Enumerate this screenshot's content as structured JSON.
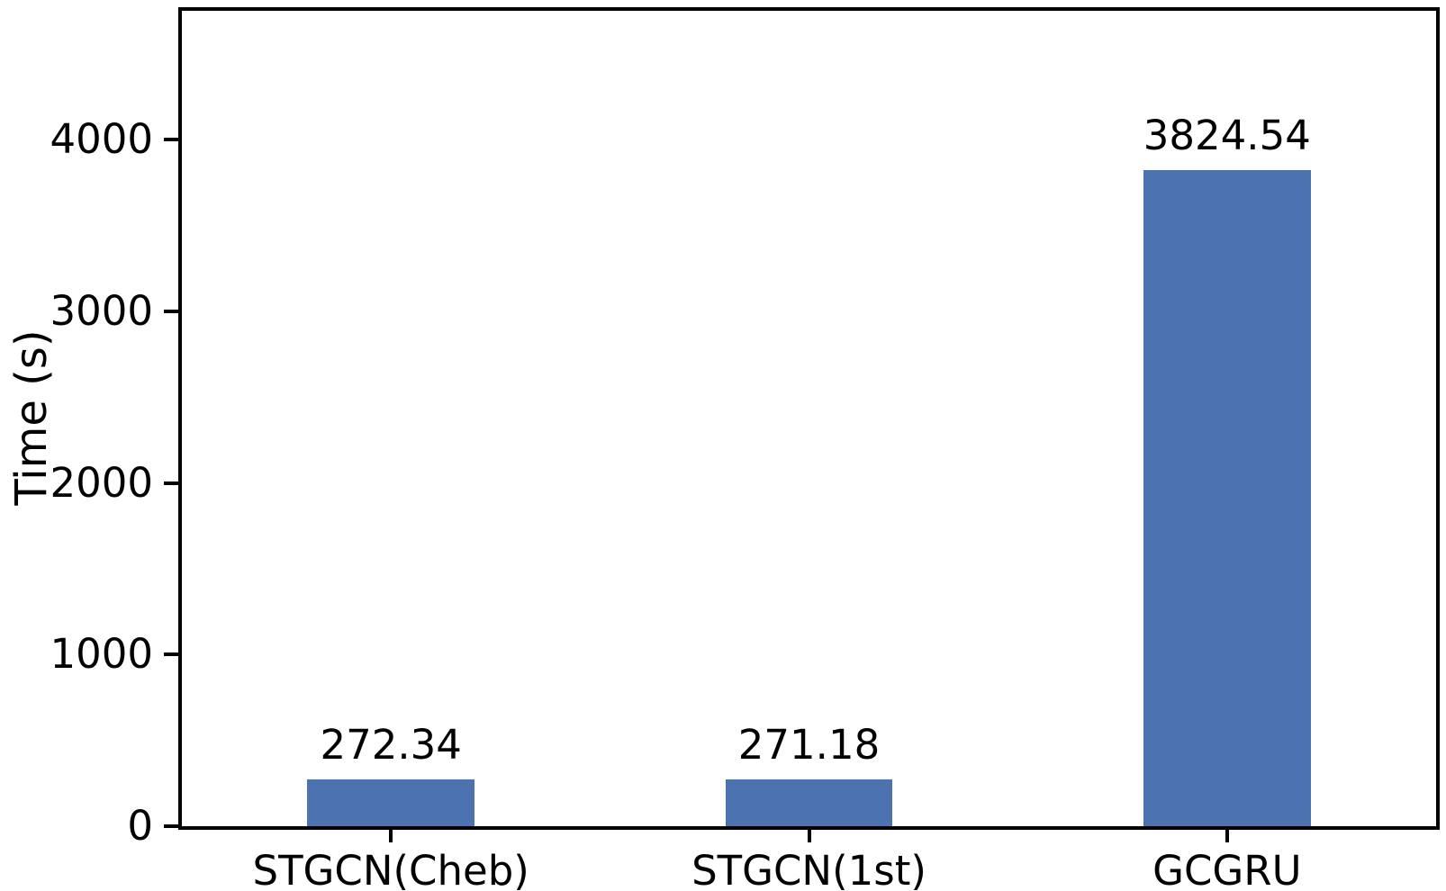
{
  "chart_data": {
    "type": "bar",
    "title": "",
    "xlabel": "",
    "ylabel": "Time (s)",
    "categories": [
      "STGCN(Cheb)",
      "STGCN(1st)",
      "GCGRU"
    ],
    "values": [
      272.34,
      271.18,
      3824.54
    ],
    "bar_labels": [
      "272.34",
      "271.18",
      "3824.54"
    ],
    "yticks": [
      0,
      1000,
      2000,
      3000,
      4000
    ],
    "ytick_labels": [
      "0",
      "1000",
      "2000",
      "3000",
      "4000"
    ],
    "ylim": [
      0,
      4750
    ],
    "grid": false,
    "legend": "none",
    "bar_color": "#4C72B0",
    "frame_color": "#000000",
    "text_color": "#000000",
    "background_color": "#ffffff"
  }
}
